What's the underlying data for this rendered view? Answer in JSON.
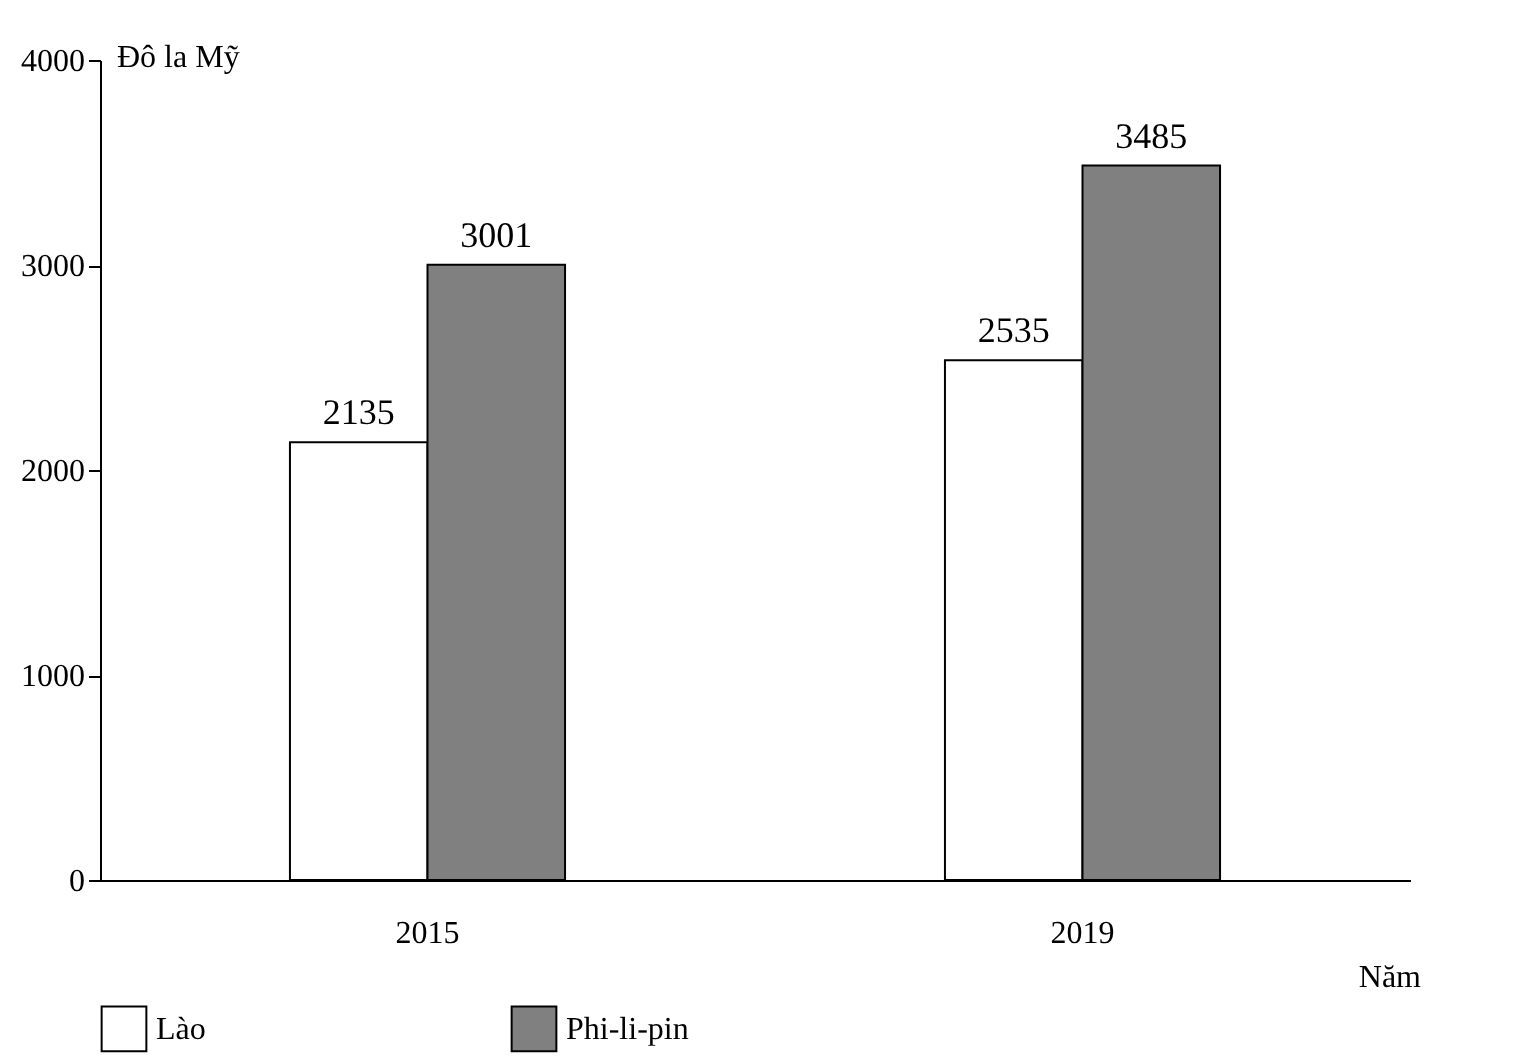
{
  "chart_data": {
    "type": "bar",
    "ylabel": "Đô la Mỹ",
    "xlabel": "Năm",
    "categories": [
      "2015",
      "2019"
    ],
    "series": [
      {
        "name": "Lào",
        "color": "#ffffff",
        "values": [
          2135,
          2535
        ]
      },
      {
        "name": "Phi-li-pin",
        "color": "#808080",
        "values": [
          3001,
          3485
        ]
      }
    ],
    "ylim": [
      0,
      4000
    ],
    "yticks": [
      0,
      1000,
      2000,
      3000,
      4000
    ],
    "data_labels": true,
    "legend": "bottom"
  }
}
